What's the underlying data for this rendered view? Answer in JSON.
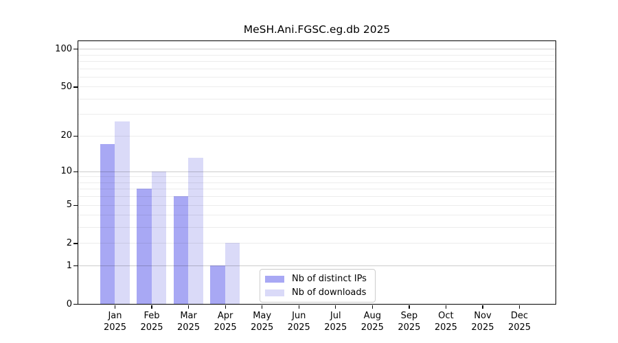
{
  "chart_data": {
    "type": "bar",
    "title": "MeSH.Ani.FGSC.eg.db 2025",
    "y_scale": "log1p",
    "ylim": [
      0,
      115
    ],
    "y_ticks": [
      0,
      1,
      2,
      5,
      10,
      20,
      50,
      100
    ],
    "grid": {
      "major_values": [
        1,
        10,
        100
      ],
      "minor_values": [
        2,
        3,
        4,
        5,
        6,
        7,
        8,
        9,
        20,
        30,
        40,
        50,
        60,
        70,
        80,
        90
      ]
    },
    "categories": [
      "Jan",
      "Feb",
      "Mar",
      "Apr",
      "May",
      "Jun",
      "Jul",
      "Aug",
      "Sep",
      "Oct",
      "Nov",
      "Dec"
    ],
    "year": "2025",
    "series": [
      {
        "name": "Nb of distinct IPs",
        "color": "#a8a8f4",
        "values": [
          17,
          7,
          6,
          1,
          0,
          0,
          0,
          0,
          0,
          0,
          0,
          0
        ]
      },
      {
        "name": "Nb of downloads",
        "color": "#dadaf8",
        "values": [
          26,
          10,
          13,
          2,
          0,
          0,
          0,
          0,
          0,
          0,
          0,
          0
        ]
      }
    ],
    "legend_position": "bottom-center",
    "colors": {
      "axis": "#000000",
      "grid_major": "#c9c9c9",
      "grid_minor": "#ededed",
      "legend_border": "#cccccc"
    }
  }
}
